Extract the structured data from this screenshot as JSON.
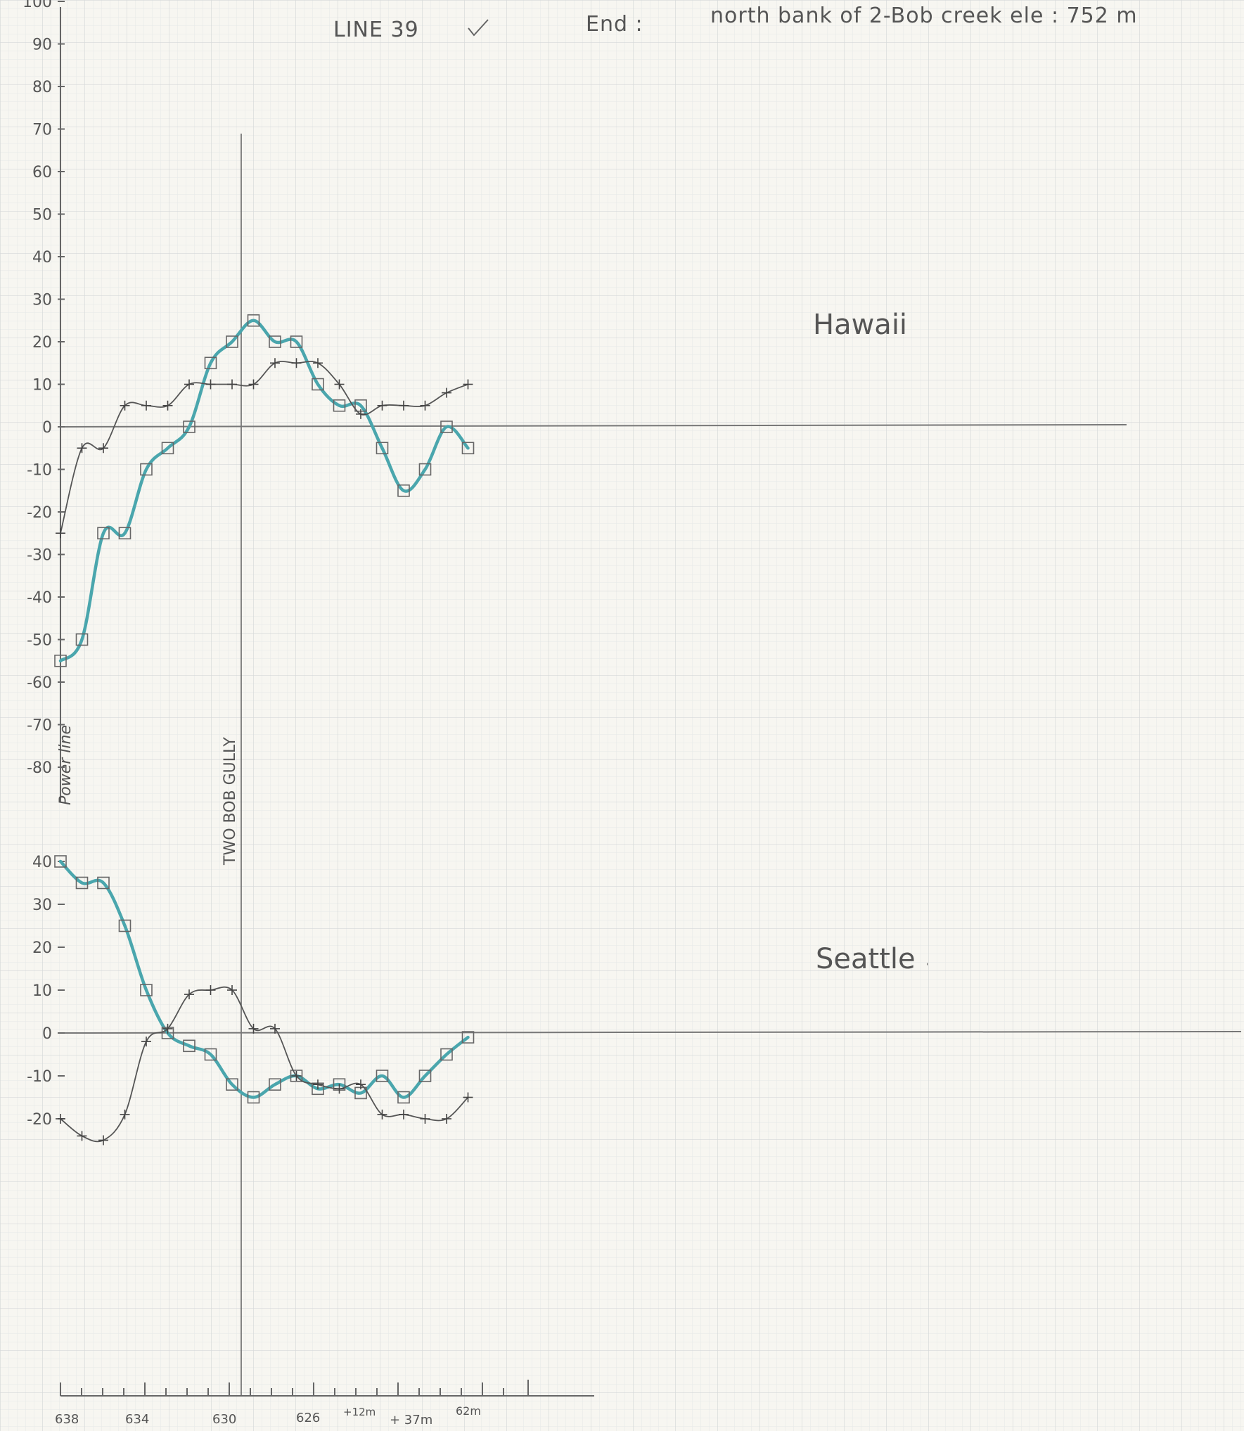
{
  "header": {
    "line_label": "LINE 39",
    "end_label": "End :",
    "end_note": "north bank of 2-Bob creek ele : 752 m"
  },
  "annotations": {
    "power_line": "Power line",
    "gully": "TWO BOB GULLY"
  },
  "x_axis": {
    "tick_count": 22,
    "labels": [
      "638",
      "634",
      "630",
      "626",
      "+12m",
      "+ 37m",
      "62m"
    ]
  },
  "colors": {
    "paper": "#f7f6f1",
    "grid_fine": "#e4e6e6",
    "grid_major": "#d3d6d6",
    "teal_series": "#4aa6ad",
    "pencil_series": "#555555"
  },
  "chart_data": [
    {
      "type": "line",
      "title": "Hawaii",
      "ylim": [
        -80,
        100
      ],
      "y_ticks": [
        "100",
        "90",
        "80",
        "70",
        "60",
        "50",
        "40",
        "30",
        "20",
        "10",
        "0",
        "-10",
        "-20",
        "-30",
        "-40",
        "-50",
        "-60",
        "-70",
        "-80"
      ],
      "series": [
        {
          "marker": "square",
          "color": "teal",
          "x": [
            0,
            1,
            2,
            3,
            4,
            5,
            6,
            7,
            8,
            9,
            10,
            11,
            12,
            13,
            14,
            15,
            16,
            17,
            18,
            19
          ],
          "values": [
            -55,
            -50,
            -25,
            -25,
            -10,
            -5,
            0,
            15,
            20,
            25,
            20,
            20,
            10,
            5,
            5,
            -5,
            -15,
            -10,
            0,
            -5
          ]
        },
        {
          "marker": "plus",
          "color": "pencil",
          "x": [
            0,
            1,
            2,
            3,
            4,
            5,
            6,
            7,
            8,
            9,
            10,
            11,
            12,
            13,
            14,
            15,
            16,
            17,
            18,
            19
          ],
          "values": [
            -25,
            -5,
            -5,
            5,
            5,
            5,
            10,
            10,
            10,
            10,
            15,
            15,
            15,
            10,
            3,
            5,
            5,
            5,
            8,
            10
          ]
        }
      ]
    },
    {
      "type": "line",
      "title": "Seattle",
      "ylim": [
        -25,
        40
      ],
      "y_ticks": [
        "40",
        "30",
        "20",
        "10",
        "0",
        "-10",
        "-20"
      ],
      "series": [
        {
          "marker": "square",
          "color": "teal",
          "x": [
            0,
            1,
            2,
            3,
            4,
            5,
            6,
            7,
            8,
            9,
            10,
            11,
            12,
            13,
            14,
            15,
            16,
            17,
            18,
            19
          ],
          "values": [
            40,
            35,
            35,
            25,
            10,
            0,
            -3,
            -5,
            -12,
            -15,
            -12,
            -10,
            -13,
            -12,
            -14,
            -10,
            -15,
            -10,
            -5,
            -1
          ]
        },
        {
          "marker": "plus",
          "color": "pencil",
          "x": [
            0,
            1,
            2,
            3,
            4,
            5,
            6,
            7,
            8,
            9,
            10,
            11,
            12,
            13,
            14,
            15,
            16,
            17,
            18,
            19
          ],
          "values": [
            -20,
            -24,
            -25,
            -19,
            -2,
            1,
            9,
            10,
            10,
            1,
            1,
            -10,
            -12,
            -13,
            -12,
            -19,
            -19,
            -20,
            -20,
            -15
          ]
        }
      ]
    }
  ]
}
